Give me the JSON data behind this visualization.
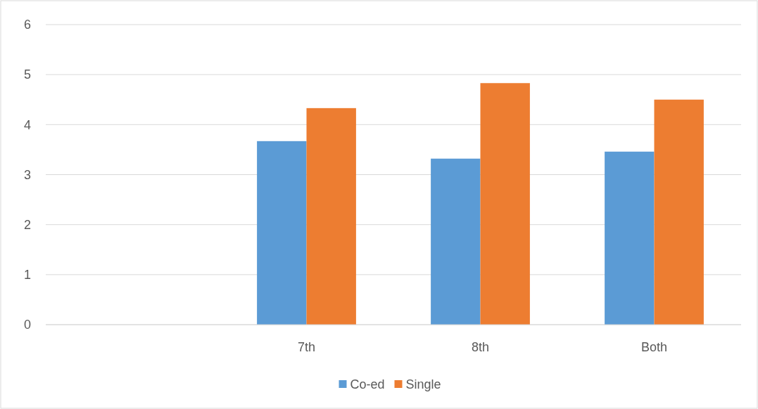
{
  "chart_data": {
    "type": "bar",
    "categories": [
      null,
      "7th",
      "8th",
      "Both"
    ],
    "series": [
      {
        "name": "Co-ed",
        "color": "#5b9bd5",
        "values": [
          null,
          3.67,
          3.32,
          3.46
        ]
      },
      {
        "name": "Single",
        "color": "#ed7d31",
        "values": [
          null,
          4.33,
          4.83,
          4.5
        ]
      }
    ],
    "ylim": [
      0,
      6
    ],
    "yticks": [
      0,
      1,
      2,
      3,
      4,
      5,
      6
    ],
    "grid": "y",
    "legend": "bottom"
  }
}
